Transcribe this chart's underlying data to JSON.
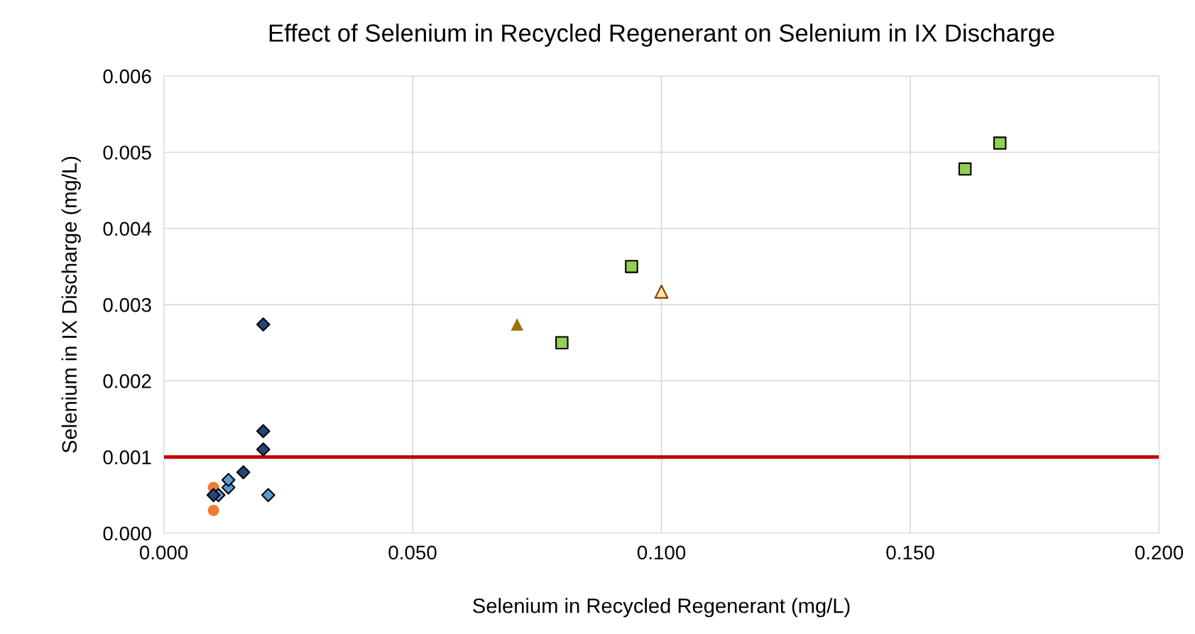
{
  "chart_data": {
    "type": "scatter",
    "title": "Effect of Selenium in Recycled Regenerant on Selenium in IX Discharge",
    "xlabel": "Selenium in Recycled Regenerant (mg/L)",
    "ylabel": "Selenium in IX Discharge (mg/L)",
    "xlim": [
      0,
      0.2
    ],
    "xticks": [
      {
        "value": 0,
        "label": "0.000"
      },
      {
        "value": 0.05,
        "label": "0.050"
      },
      {
        "value": 0.1,
        "label": "0.100"
      },
      {
        "value": 0.15,
        "label": "0.150"
      },
      {
        "value": 0.2,
        "label": "0.200"
      }
    ],
    "ylim": [
      0,
      0.006
    ],
    "yticks": [
      {
        "value": 0,
        "label": "0.000"
      },
      {
        "value": 0.001,
        "label": "0.001"
      },
      {
        "value": 0.002,
        "label": "0.002"
      },
      {
        "value": 0.003,
        "label": "0.003"
      },
      {
        "value": 0.004,
        "label": "0.004"
      },
      {
        "value": 0.005,
        "label": "0.005"
      },
      {
        "value": 0.006,
        "label": "0.006"
      }
    ],
    "grid": true,
    "legend": false,
    "series": [
      {
        "color": "#ed7d31",
        "marker": "circle",
        "x": [
          0.01,
          0.01
        ],
        "values": [
          0.0006,
          0.0003
        ]
      },
      {
        "color": "#5b9bd5",
        "marker": "diamond",
        "x": [
          0.011,
          0.013,
          0.013,
          0.021
        ],
        "values": [
          0.0005,
          0.0006,
          0.0007,
          0.0005
        ]
      },
      {
        "color": "#264478",
        "marker": "diamond",
        "x": [
          0.01,
          0.016,
          0.02,
          0.02,
          0.02
        ],
        "values": [
          0.0005,
          0.0008,
          0.0011,
          0.00134,
          0.00274
        ]
      },
      {
        "color": "#92d050",
        "marker": "square",
        "x": [
          0.08,
          0.094,
          0.161,
          0.168
        ],
        "values": [
          0.0025,
          0.0035,
          0.00478,
          0.00512
        ]
      },
      {
        "color": "#9c7200",
        "marker": "triangle",
        "x": [
          0.071
        ],
        "values": [
          0.00274
        ]
      },
      {
        "color": "#ffe699",
        "marker": "triangle",
        "x": [
          0.1
        ],
        "values": [
          0.00317
        ]
      }
    ],
    "ref_lines": [
      {
        "axis": "y",
        "value": 0.001,
        "color": "#c00000"
      }
    ]
  }
}
